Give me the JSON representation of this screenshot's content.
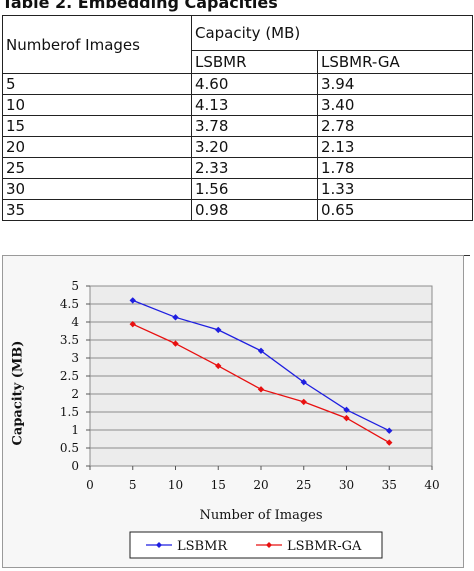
{
  "caption": "Table 2. Embedding Capacities",
  "table": {
    "col0_header": "Numberof Images",
    "group_header": "Capacity (MB)",
    "col1_header": "LSBMR",
    "col2_header": "LSBMR-GA",
    "rows": [
      [
        "5",
        "4.60",
        "3.94"
      ],
      [
        "10",
        "4.13",
        "3.40"
      ],
      [
        "15",
        "3.78",
        "2.78"
      ],
      [
        "20",
        "3.20",
        "2.13"
      ],
      [
        "25",
        "2.33",
        "1.78"
      ],
      [
        "30",
        "1.56",
        "1.33"
      ],
      [
        "35",
        "0.98",
        "0.65"
      ]
    ]
  },
  "chart_data": {
    "type": "line",
    "xlabel": "Number of Images",
    "ylabel": "Capacity (MB)",
    "xlim": [
      0,
      40
    ],
    "ylim": [
      0,
      5
    ],
    "x_ticks": [
      "0",
      "5",
      "10",
      "15",
      "20",
      "25",
      "30",
      "35",
      "40"
    ],
    "y_ticks": [
      "0",
      "0.5",
      "1",
      "1.5",
      "2",
      "2.5",
      "3",
      "3.5",
      "4",
      "4.5",
      "5"
    ],
    "grid": "horizontal",
    "legend_position": "bottom",
    "x": [
      5,
      10,
      15,
      20,
      25,
      30,
      35
    ],
    "series": [
      {
        "name": "LSBMR",
        "color": "#1f1fe0",
        "marker": "diamond",
        "values": [
          4.6,
          4.13,
          3.78,
          3.2,
          2.33,
          1.56,
          0.98
        ]
      },
      {
        "name": "LSBMR-GA",
        "color": "#e81010",
        "marker": "diamond",
        "values": [
          3.94,
          3.4,
          2.78,
          2.13,
          1.78,
          1.33,
          0.65
        ]
      }
    ]
  }
}
